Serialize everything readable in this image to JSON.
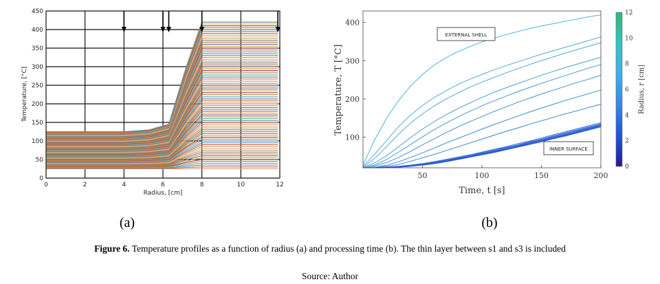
{
  "chart_data": [
    {
      "type": "line",
      "panel_label": "(a)",
      "xlabel": "Radius, [cm]",
      "ylabel": "Temperature, [°C]",
      "xlim": [
        0,
        12
      ],
      "ylim": [
        0,
        450
      ],
      "xticks": [
        "0",
        "2",
        "4",
        "6",
        "8",
        "10",
        "12"
      ],
      "yticks": [
        "0",
        "50",
        "100",
        "150",
        "200",
        "250",
        "300",
        "350",
        "400",
        "450"
      ],
      "grid": true,
      "arrow_positions": [
        4,
        6,
        6.3,
        8,
        11.9
      ],
      "profile_breakpoints_x": [
        0,
        4,
        5.3,
        6.3,
        7.2,
        8,
        11.9
      ],
      "series_family": {
        "count": 80,
        "first": [
          25,
          25,
          25,
          25,
          25,
          25,
          25
        ],
        "last": [
          125,
          125,
          130,
          145,
          300,
          420,
          420
        ]
      }
    },
    {
      "type": "line",
      "panel_label": "(b)",
      "xlabel": "Time, t [s]",
      "ylabel": "Temperature, T [°C]",
      "xlim": [
        0,
        200
      ],
      "ylim": [
        20,
        430
      ],
      "xticks": [
        "50",
        "100",
        "150",
        "200"
      ],
      "yticks": [
        "100",
        "200",
        "300",
        "400"
      ],
      "colorbar": {
        "label": "Radius, r [cm]",
        "ticks": [
          "0",
          "2",
          "4",
          "6",
          "8",
          "10",
          "12"
        ],
        "range": [
          0,
          12
        ],
        "colors": [
          "#2b1a8a",
          "#1f4fd8",
          "#3a86e8",
          "#3fb0e8",
          "#2fc7c0",
          "#2fbf8f",
          "#3bb37a"
        ]
      },
      "annotations": [
        "EXTERNAL SHELL",
        "INNER SURFACE"
      ],
      "x": [
        0,
        10,
        20,
        30,
        40,
        50,
        60,
        70,
        80,
        90,
        100,
        110,
        120,
        130,
        140,
        150,
        160,
        170,
        180,
        190,
        200
      ],
      "series": [
        {
          "color": "#5cb8e6",
          "values": [
            28,
            94,
            150,
            196,
            234,
            264,
            289,
            308,
            324,
            337,
            349,
            359,
            368,
            376,
            384,
            391,
            397,
            403,
            409,
            415,
            420
          ]
        },
        {
          "color": "#62b2e2",
          "values": [
            24,
            56,
            92,
            128,
            158,
            183,
            204,
            222,
            238,
            252,
            264,
            276,
            287,
            297,
            307,
            317,
            326,
            335,
            344,
            353,
            362
          ]
        },
        {
          "color": "#66aee0",
          "values": [
            22,
            45,
            76,
            108,
            137,
            161,
            182,
            200,
            216,
            231,
            244,
            256,
            268,
            279,
            290,
            300,
            310,
            320,
            329,
            338,
            347
          ]
        },
        {
          "color": "#5aa6dc",
          "values": [
            21,
            33,
            52,
            75,
            99,
            121,
            141,
            159,
            175,
            190,
            204,
            217,
            229,
            240,
            251,
            262,
            272,
            282,
            291,
            300,
            309
          ]
        },
        {
          "color": "#58a2da",
          "values": [
            20,
            28,
            42,
            61,
            81,
            101,
            120,
            137,
            153,
            168,
            182,
            195,
            207,
            219,
            230,
            241,
            251,
            261,
            271,
            281,
            290
          ]
        },
        {
          "color": "#529cd8",
          "values": [
            20,
            25,
            34,
            47,
            63,
            80,
            96,
            112,
            127,
            141,
            154,
            167,
            179,
            191,
            202,
            213,
            223,
            233,
            243,
            252,
            262
          ]
        },
        {
          "color": "#4e96d6",
          "values": [
            20,
            22,
            27,
            36,
            47,
            59,
            72,
            85,
            97,
            109,
            121,
            133,
            144,
            155,
            166,
            176,
            186,
            196,
            205,
            214,
            223
          ]
        },
        {
          "color": "#4a90d4",
          "values": [
            20,
            21,
            24,
            29,
            37,
            46,
            55,
            65,
            75,
            85,
            95,
            105,
            115,
            124,
            134,
            143,
            152,
            161,
            169,
            178,
            186
          ]
        },
        {
          "color": "#3a72d8",
          "values": [
            20,
            20,
            22,
            24,
            27,
            31,
            36,
            42,
            48,
            54,
            61,
            68,
            75,
            83,
            90,
            98,
            106,
            114,
            122,
            130,
            138
          ]
        },
        {
          "color": "#366cd6",
          "values": [
            20,
            20,
            21,
            23,
            26,
            30,
            35,
            40,
            46,
            52,
            59,
            66,
            73,
            80,
            88,
            95,
            103,
            111,
            119,
            127,
            135
          ]
        },
        {
          "color": "#3266d4",
          "values": [
            20,
            20,
            21,
            23,
            25,
            29,
            34,
            39,
            45,
            51,
            57,
            64,
            71,
            78,
            86,
            93,
            101,
            109,
            117,
            125,
            133
          ]
        },
        {
          "color": "#2e60d2",
          "values": [
            20,
            20,
            21,
            22,
            25,
            28,
            33,
            38,
            44,
            50,
            56,
            63,
            70,
            77,
            84,
            92,
            99,
            107,
            115,
            123,
            131
          ]
        },
        {
          "color": "#2a5ad0",
          "values": [
            20,
            20,
            21,
            22,
            24,
            28,
            32,
            37,
            43,
            49,
            55,
            62,
            68,
            75,
            83,
            90,
            98,
            105,
            113,
            121,
            129
          ]
        },
        {
          "color": "#2654ce",
          "values": [
            20,
            20,
            21,
            22,
            24,
            27,
            31,
            36,
            42,
            48,
            54,
            60,
            67,
            74,
            81,
            88,
            96,
            103,
            111,
            119,
            127
          ]
        }
      ]
    }
  ],
  "panel_labels": {
    "a": "(a)",
    "b": "(b)"
  },
  "caption": {
    "prefix": "Figure 6.",
    "text": " Temperature profiles as a function of radius (a) and processing time (b). The thin layer between s1 and s3 is included"
  },
  "source": "Source: Author"
}
